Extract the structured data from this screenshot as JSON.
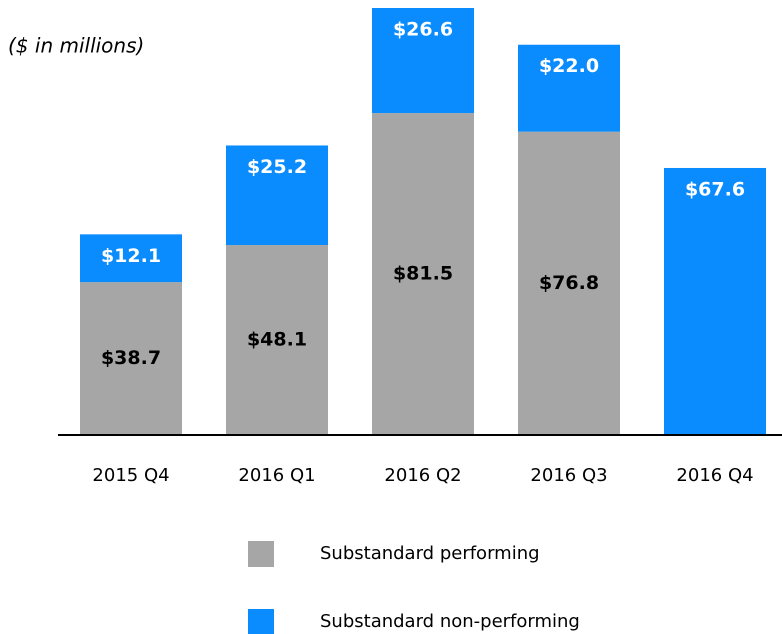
{
  "chart_data": {
    "type": "stacked-bar",
    "subtitle": "($ in millions)",
    "categories": [
      "2015 Q4",
      "2016 Q1",
      "2016 Q2",
      "2016 Q3",
      "2016 Q4"
    ],
    "series": [
      {
        "name": "Substandard performing",
        "color": "#a6a6a6",
        "values": [
          38.7,
          48.1,
          81.5,
          76.8,
          null
        ],
        "value_labels": [
          "$38.7",
          "$48.1",
          "$81.5",
          "$76.8",
          null
        ]
      },
      {
        "name": "Substandard non-performing",
        "color": "#0a8cff",
        "values": [
          12.1,
          25.2,
          26.6,
          22.0,
          67.6
        ],
        "value_labels": [
          "$12.1",
          "$25.2",
          "$26.6",
          "$22.0",
          "$67.6"
        ]
      }
    ],
    "ylim": [
      0,
      110
    ]
  }
}
